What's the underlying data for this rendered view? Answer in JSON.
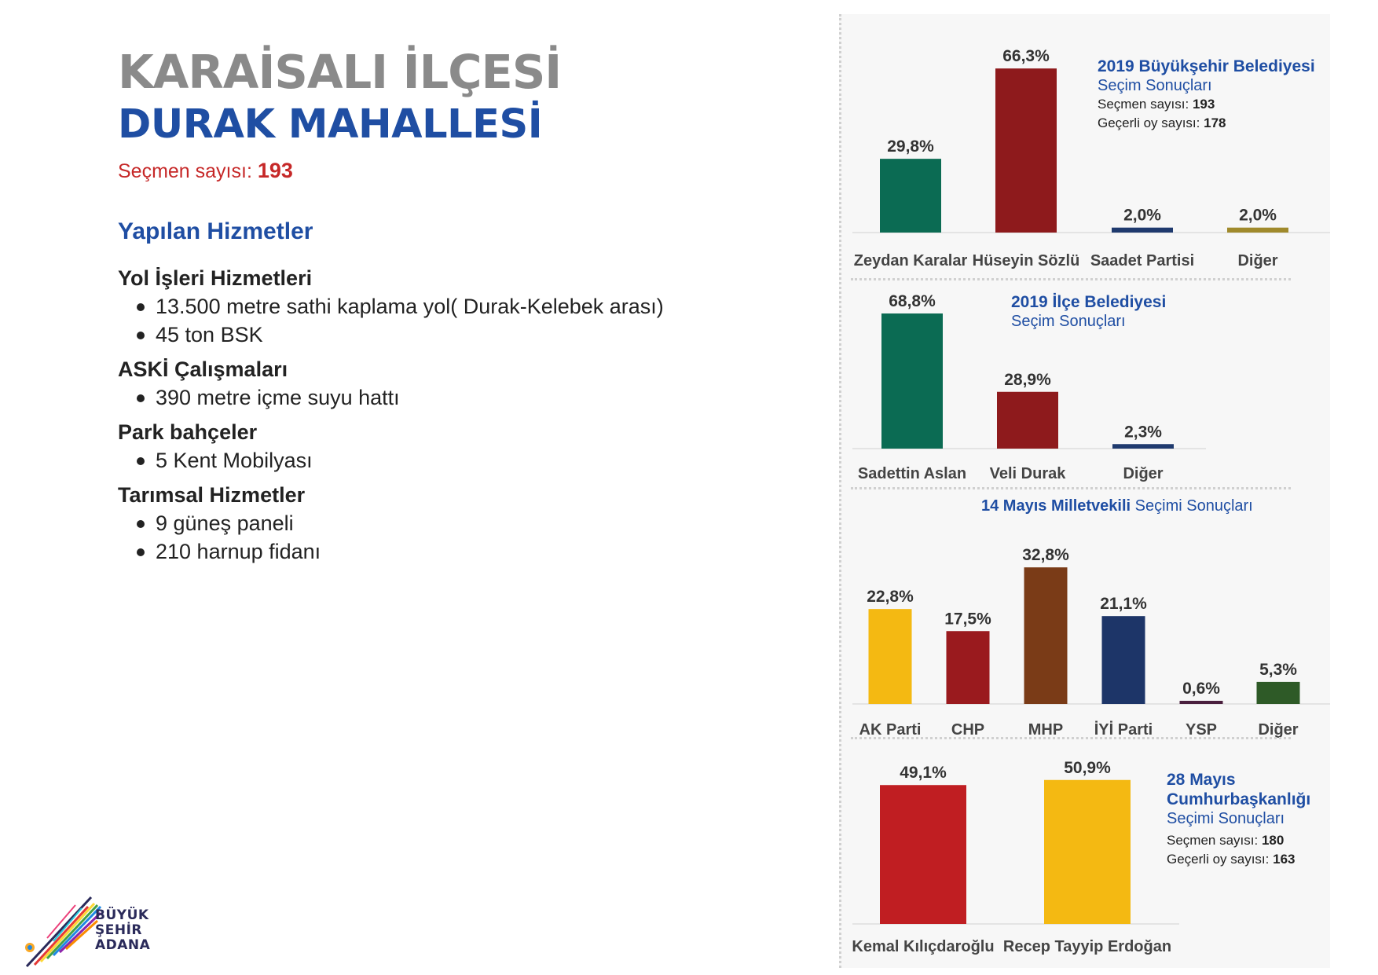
{
  "header": {
    "district": "KARAİSALI İLÇESİ",
    "neighborhood": "DURAK MAHALLESİ",
    "voters_label": "Seçmen sayısı:",
    "voters_value": "193"
  },
  "services": {
    "title": "Yapılan Hizmetler",
    "groups": [
      {
        "title": "Yol İşleri Hizmetleri",
        "items": [
          "13.500 metre sathi kaplama yol( Durak-Kelebek arası)",
          "45 ton BSK"
        ]
      },
      {
        "title": "ASKİ Çalışmaları",
        "items": [
          "390 metre içme suyu hattı"
        ]
      },
      {
        "title": "Park bahçeler",
        "items": [
          "5 Kent Mobilyası"
        ]
      },
      {
        "title": "Tarımsal Hizmetler",
        "items": [
          "9 güneş paneli",
          "210 harnup fidanı"
        ]
      }
    ]
  },
  "logo": {
    "line1": "BÜYÜK",
    "line2": "ŞEHİR",
    "line3": "ADANA"
  },
  "panels": {
    "metro": {
      "title1": "2019 Büyükşehir Belediyesi",
      "title2": "Seçim Sonuçları",
      "voters_label": "Seçmen sayısı:",
      "voters_value": "193",
      "valid_label": "Geçerli oy sayısı:",
      "valid_value": "178"
    },
    "district": {
      "title1": "2019 İlçe Belediyesi",
      "title2": "Seçim Sonuçları"
    },
    "parliament": {
      "title_bold": "14 Mayıs Milletvekili",
      "title_regular": "Seçimi Sonuçları"
    },
    "president": {
      "title1": "28 Mayıs",
      "title2": "Cumhurbaşkanlığı",
      "title3": "Seçimi Sonuçları",
      "voters_label": "Seçmen sayısı:",
      "voters_value": "180",
      "valid_label": "Geçerli oy sayısı:",
      "valid_value": "163"
    }
  },
  "chart_data": [
    {
      "type": "bar",
      "title": "2019 Büyükşehir Belediyesi Seçim Sonuçları",
      "categories": [
        "Zeydan Karalar",
        "Hüseyin Sözlü",
        "Saadet Partisi",
        "Diğer"
      ],
      "values": [
        29.8,
        66.3,
        2.0,
        2.0
      ],
      "labels": [
        "29,8%",
        "66,3%",
        "2,0%",
        "2,0%"
      ],
      "colors": [
        "#0b6b53",
        "#8e1a1c",
        "#1f3a6e",
        "#a08a2c"
      ]
    },
    {
      "type": "bar",
      "title": "2019 İlçe Belediyesi Seçim Sonuçları",
      "categories": [
        "Sadettin Aslan",
        "Veli Durak",
        "Diğer"
      ],
      "values": [
        68.8,
        28.9,
        2.3
      ],
      "labels": [
        "68,8%",
        "28,9%",
        "2,3%"
      ],
      "colors": [
        "#0b6b53",
        "#8e1a1c",
        "#1f3a6e"
      ]
    },
    {
      "type": "bar",
      "title": "14 Mayıs Milletvekili Seçimi Sonuçları",
      "categories": [
        "AK Parti",
        "CHP",
        "MHP",
        "İYİ Parti",
        "YSP",
        "Diğer"
      ],
      "values": [
        22.8,
        17.5,
        32.8,
        21.1,
        0.6,
        5.3
      ],
      "labels": [
        "22,8%",
        "17,5%",
        "32,8%",
        "21,1%",
        "0,6%",
        "5,3%"
      ],
      "colors": [
        "#f4b912",
        "#9a1a1e",
        "#7a3b17",
        "#1d3568",
        "#4a1f3e",
        "#2e5a27"
      ]
    },
    {
      "type": "bar",
      "title": "28 Mayıs Cumhurbaşkanlığı Seçimi Sonuçları",
      "categories": [
        "Kemal Kılıçdaroğlu",
        "Recep Tayyip Erdoğan"
      ],
      "values": [
        49.1,
        50.9
      ],
      "labels": [
        "49,1%",
        "50,9%"
      ],
      "colors": [
        "#c01e22",
        "#f4b912"
      ]
    }
  ]
}
